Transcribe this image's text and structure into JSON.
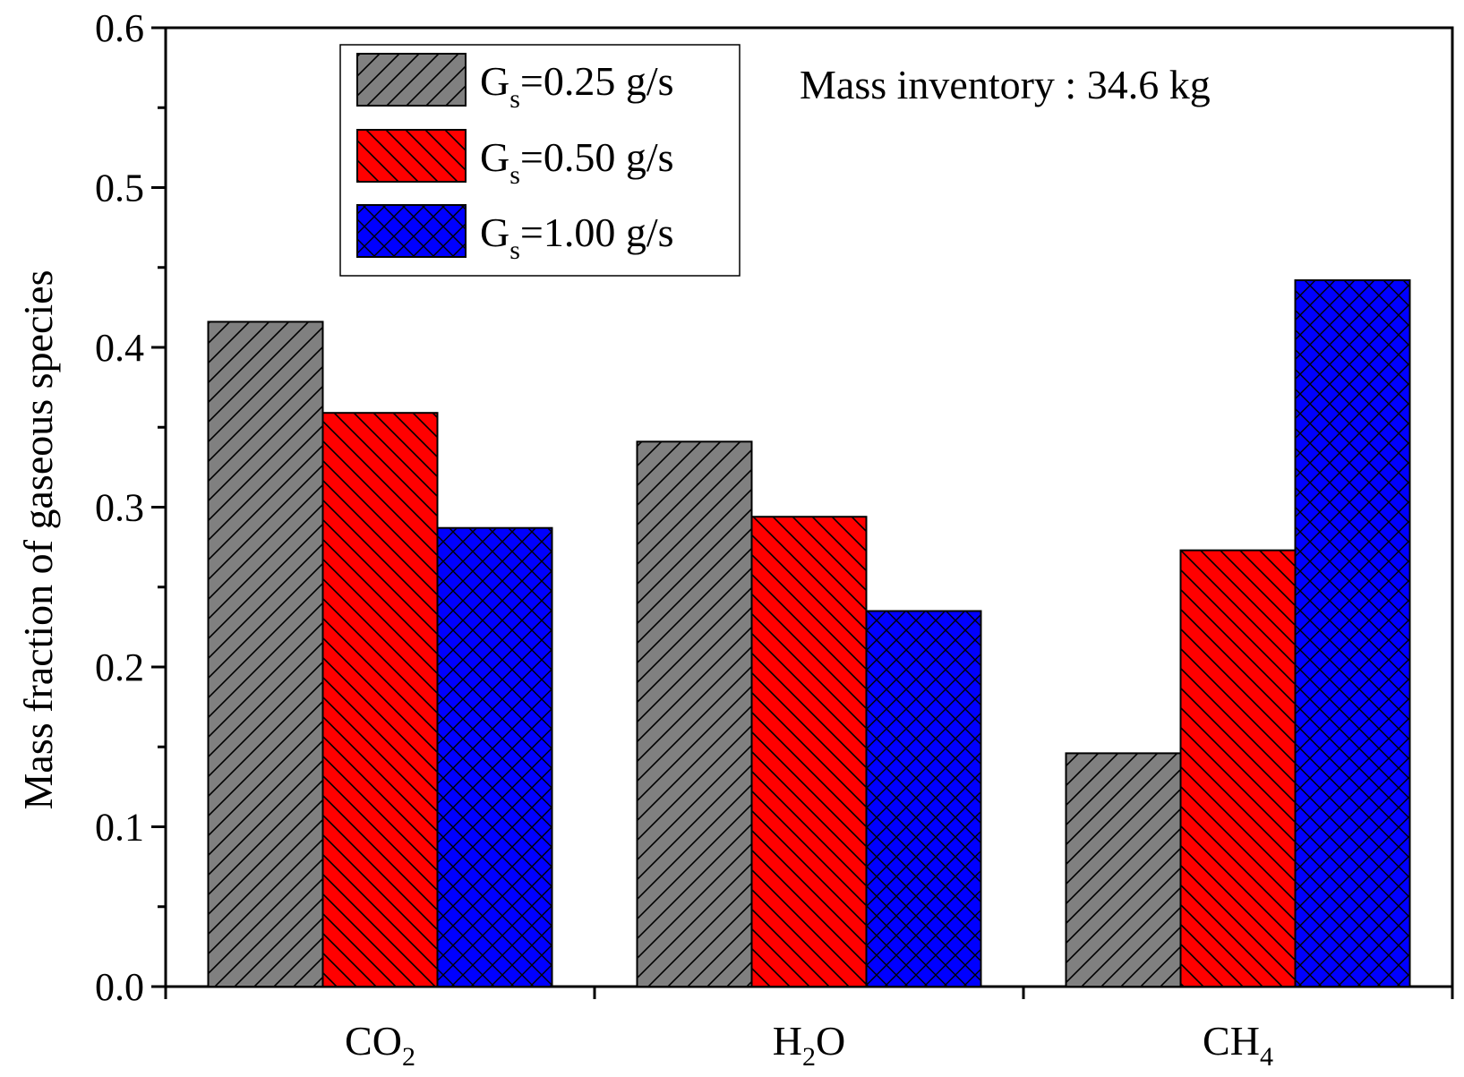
{
  "chart_data": {
    "type": "bar",
    "title": "",
    "xlabel": "",
    "ylabel": "Mass fraction of gaseous species",
    "ylim": [
      0,
      0.6
    ],
    "yticks": [
      "0.0",
      "0.1",
      "0.2",
      "0.3",
      "0.4",
      "0.5",
      "0.6"
    ],
    "categories": [
      {
        "base": "CO",
        "sub": "2",
        "after": ""
      },
      {
        "base": "H",
        "sub": "2",
        "after": "O"
      },
      {
        "base": "CH",
        "sub": "4",
        "after": ""
      }
    ],
    "series": [
      {
        "name": "Gs=0.25 g/s",
        "label_base": "G",
        "label_sub": "s",
        "label_rest": "=0.25 g/s",
        "color": "#808080",
        "pattern": "diagonal-up",
        "values": [
          0.416,
          0.341,
          0.146
        ]
      },
      {
        "name": "Gs=0.50 g/s",
        "label_base": "G",
        "label_sub": "s",
        "label_rest": "=0.50 g/s",
        "color": "#ff0000",
        "pattern": "diagonal-down",
        "values": [
          0.359,
          0.294,
          0.273
        ]
      },
      {
        "name": "Gs=1.00 g/s",
        "label_base": "G",
        "label_sub": "s",
        "label_rest": "=1.00 g/s",
        "color": "#0000ff",
        "pattern": "crosshatch",
        "values": [
          0.287,
          0.235,
          0.442
        ]
      }
    ],
    "annotation": "Mass inventory : 34.6 kg",
    "legend_position": "top-left"
  }
}
